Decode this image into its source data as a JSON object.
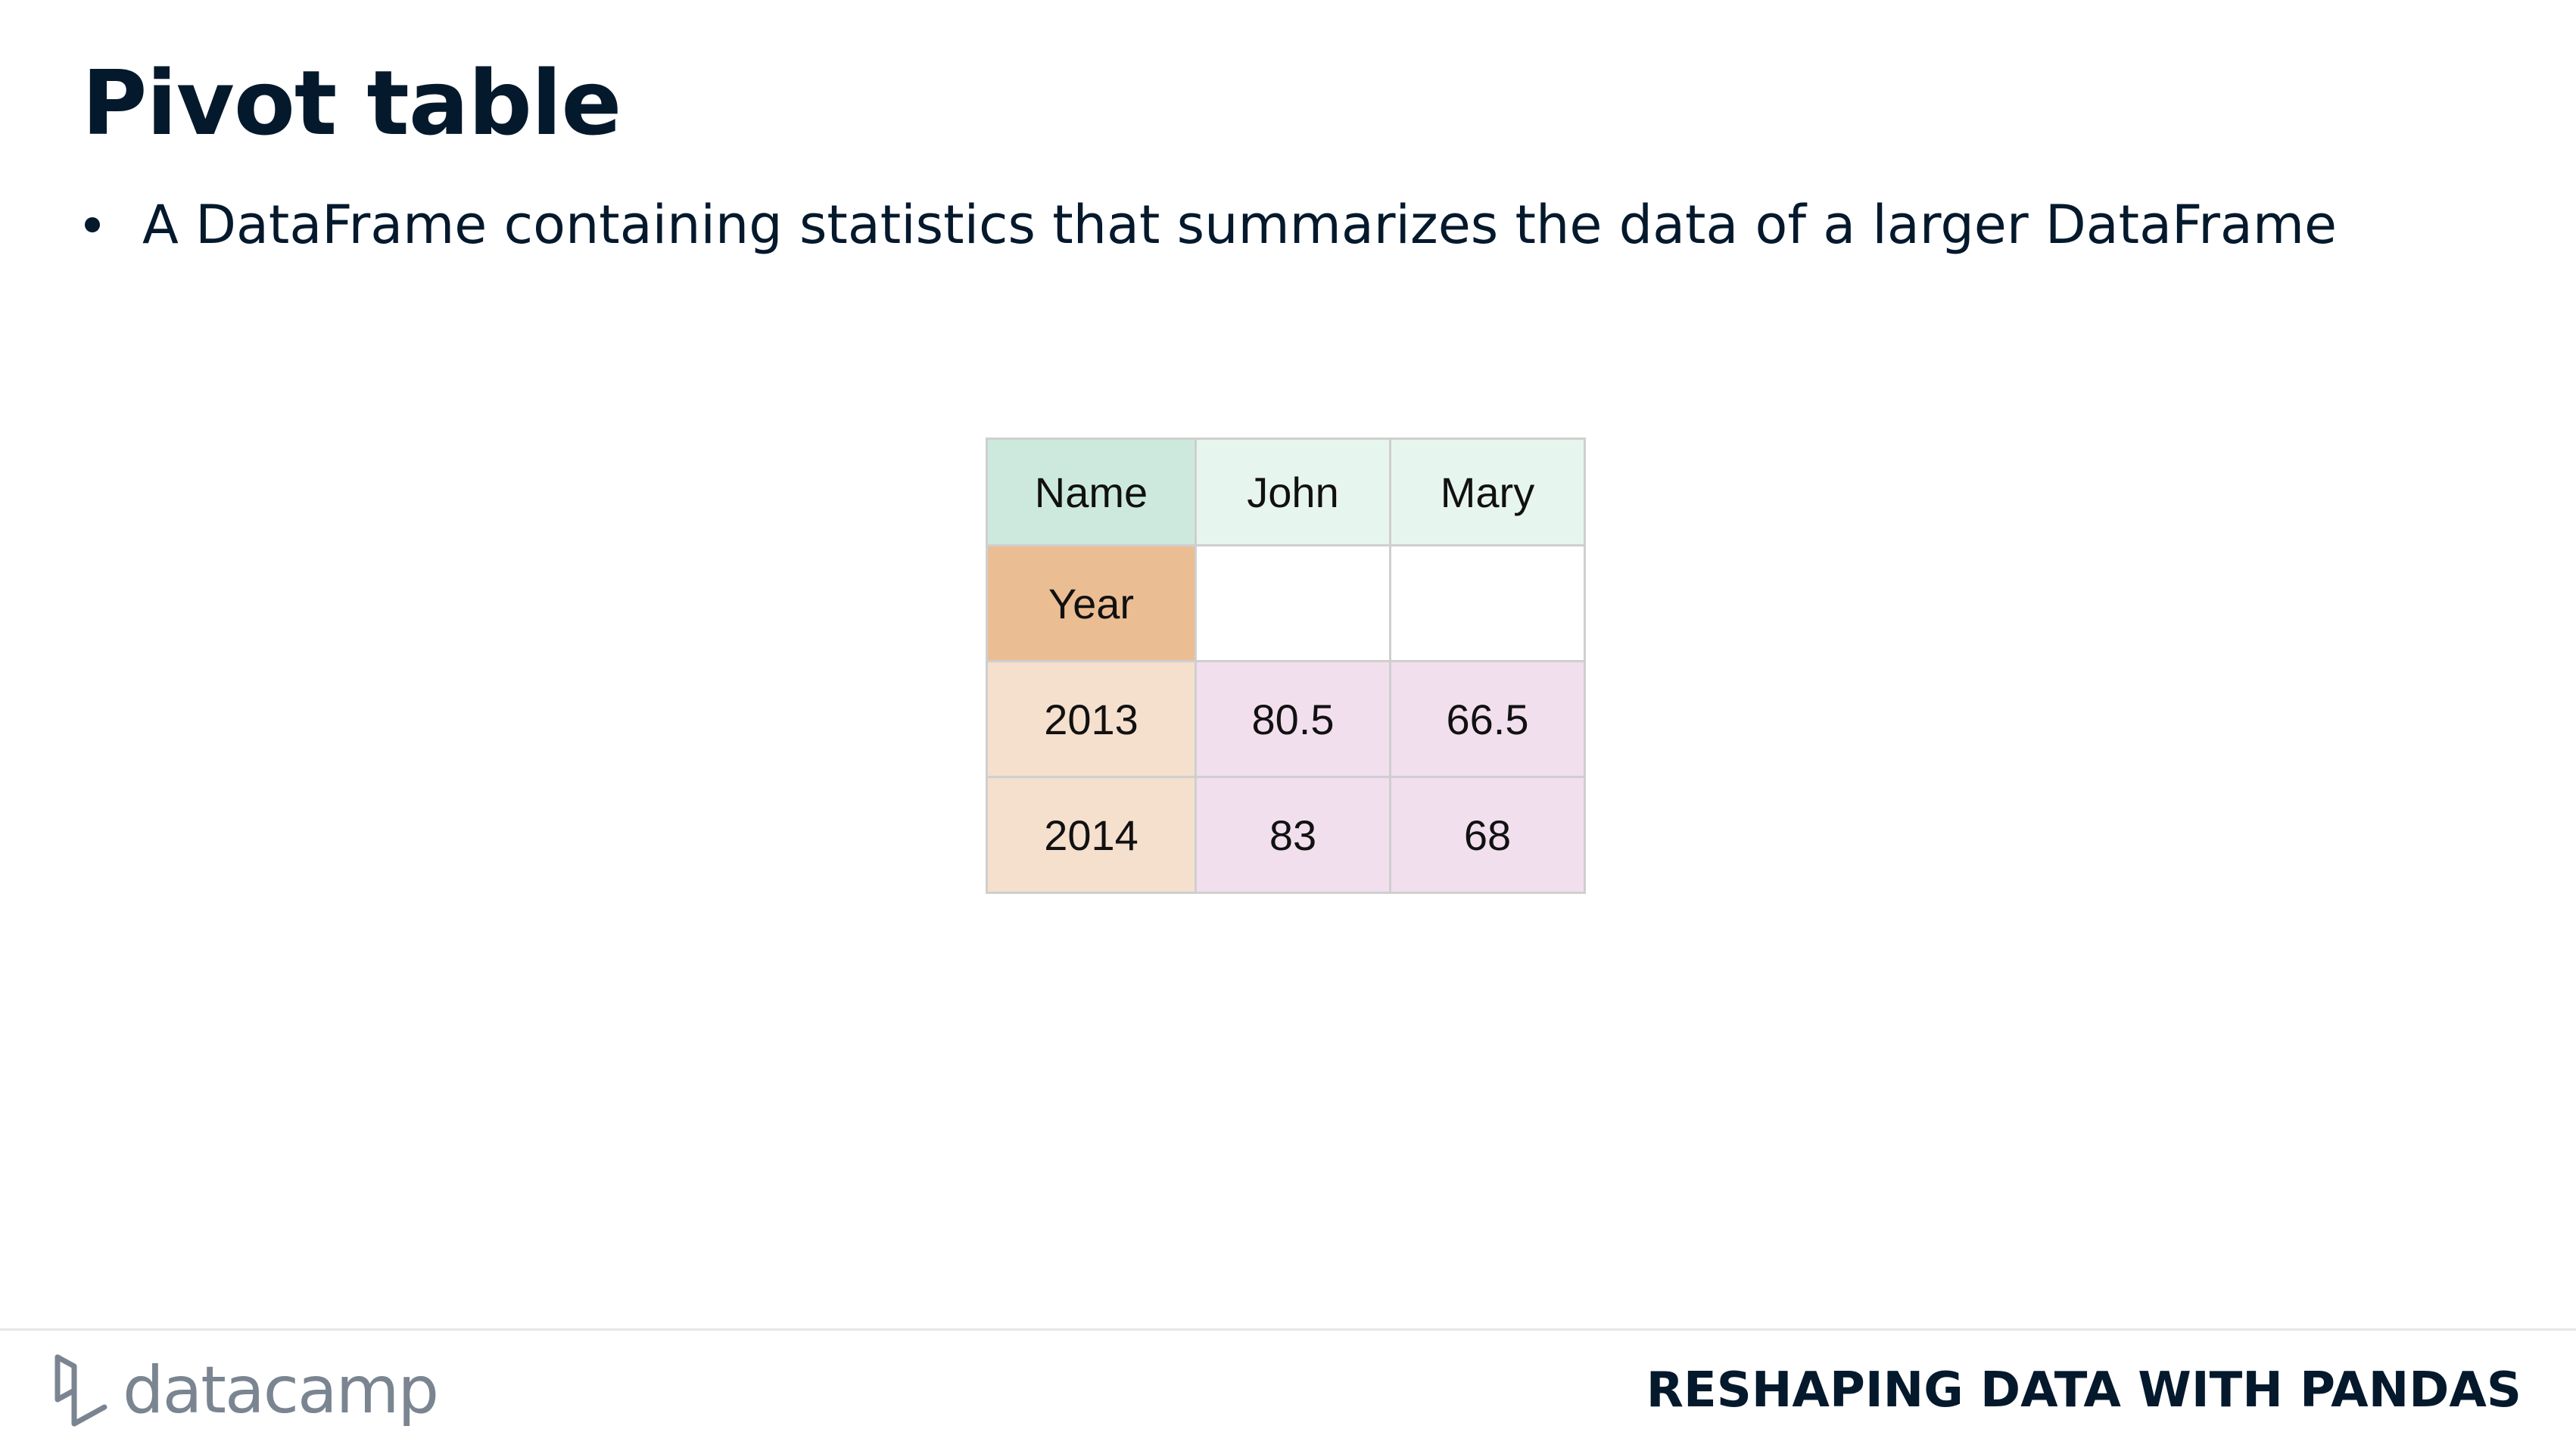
{
  "slide": {
    "title": "Pivot table",
    "bullets": [
      "A DataFrame containing statistics that summarizes the data of a larger DataFrame"
    ]
  },
  "table": {
    "header": [
      "Name",
      "John",
      "Mary"
    ],
    "index_label": "Year",
    "rows": [
      [
        "2013",
        "80.5",
        "66.5"
      ],
      [
        "2014",
        "83",
        "68"
      ]
    ],
    "colors": {
      "name_cell": "#cde9de",
      "column_header": "#e7f5ef",
      "index_label": "#ebbd93",
      "row_header": "#f5dfcd",
      "values": "#f1dfee"
    }
  },
  "footer": {
    "logo_text": "datacamp",
    "logo_icon": "datacamp-logo-icon",
    "course_name": "RESHAPING DATA WITH PANDAS"
  }
}
